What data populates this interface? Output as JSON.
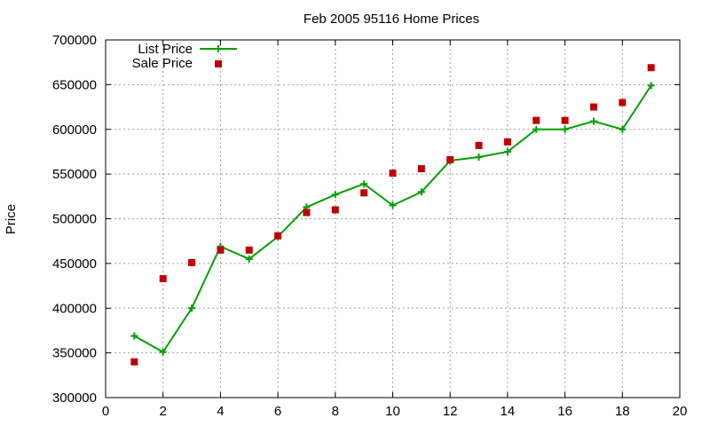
{
  "chart_data": {
    "type": "line",
    "title": "Feb 2005 95116 Home Prices",
    "xlabel": "",
    "ylabel": "Price",
    "xlim": [
      0,
      20
    ],
    "ylim": [
      300000,
      700000
    ],
    "x_ticks": [
      0,
      2,
      4,
      6,
      8,
      10,
      12,
      14,
      16,
      18,
      20
    ],
    "y_ticks": [
      300000,
      350000,
      400000,
      450000,
      500000,
      550000,
      600000,
      650000,
      700000
    ],
    "grid": true,
    "legend_position": "top-left",
    "series": [
      {
        "name": "List Price",
        "style": "line-with-plus-markers",
        "color": "#00a000",
        "x": [
          1,
          2,
          3,
          4,
          5,
          6,
          7,
          8,
          9,
          10,
          11,
          12,
          13,
          14,
          15,
          16,
          17,
          18,
          19
        ],
        "values": [
          369000,
          351000,
          400000,
          469000,
          455000,
          480000,
          513000,
          527000,
          539000,
          515000,
          530000,
          565000,
          569000,
          575000,
          600000,
          600000,
          609000,
          600000,
          649000
        ]
      },
      {
        "name": "Sale Price",
        "style": "square-points",
        "color": "#c00000",
        "x": [
          1,
          2,
          3,
          4,
          5,
          6,
          7,
          8,
          9,
          10,
          11,
          12,
          13,
          14,
          15,
          16,
          17,
          18,
          19
        ],
        "values": [
          340000,
          433000,
          451000,
          465000,
          465000,
          481000,
          507000,
          510000,
          529000,
          551000,
          556000,
          566000,
          582000,
          586000,
          610000,
          610000,
          625000,
          630000,
          669000
        ]
      }
    ]
  }
}
